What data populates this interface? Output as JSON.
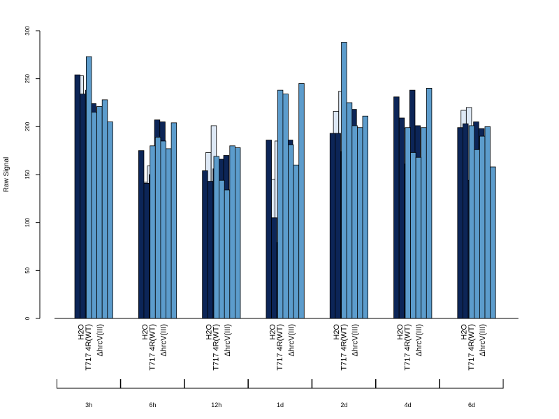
{
  "chart_data": {
    "type": "bar",
    "ylabel": "Raw Signal",
    "ylim": [
      0,
      300
    ],
    "yticks": [
      0,
      50,
      100,
      150,
      200,
      250,
      300
    ],
    "category_labels": [
      "H2O",
      "T717 4R(WT)",
      "ΔhrcV(III)"
    ],
    "colors": {
      "H2O": "#dde8f5",
      "T717 4R(WT)": "#0c2557",
      "ΔhrcV(III)": "#5c9ccc"
    },
    "groups": [
      {
        "label": "3h",
        "series": [
          {
            "category": "H2O",
            "values": [
              0,
              253,
              222
            ]
          },
          {
            "category": "T717 4R(WT)",
            "values": [
              254,
              234,
              238,
              224,
              214
            ]
          },
          {
            "category": "ΔhrcV(III)",
            "values": [
              273,
              215,
              221,
              228,
              205
            ]
          }
        ]
      },
      {
        "label": "6h",
        "series": [
          {
            "category": "H2O",
            "values": [
              0,
              142,
              159
            ]
          },
          {
            "category": "T717 4R(WT)",
            "values": [
              175,
              141,
              150,
              207,
              205
            ]
          },
          {
            "category": "ΔhrcV(III)",
            "values": [
              180,
              189,
              185,
              177,
              204
            ]
          }
        ]
      },
      {
        "label": "12h",
        "series": [
          {
            "category": "H2O",
            "values": [
              0,
              173,
              201
            ]
          },
          {
            "category": "T717 4R(WT)",
            "values": [
              154,
              143,
              156,
              166,
              170
            ]
          },
          {
            "category": "ΔhrcV(III)",
            "values": [
              169,
              144,
              134,
              180,
              178
            ]
          }
        ]
      },
      {
        "label": "1d",
        "series": [
          {
            "category": "H2O",
            "values": [
              0,
              145,
              185
            ]
          },
          {
            "category": "T717 4R(WT)",
            "values": [
              186,
              105,
              79,
              162,
              186
            ]
          },
          {
            "category": "ΔhrcV(III)",
            "values": [
              238,
              234,
              181,
              160,
              245
            ]
          }
        ]
      },
      {
        "label": "2d",
        "series": [
          {
            "category": "H2O",
            "values": [
              0,
              216,
              237
            ]
          },
          {
            "category": "T717 4R(WT)",
            "values": [
              193,
              193,
              174,
              224,
              218
            ]
          },
          {
            "category": "ΔhrcV(III)",
            "values": [
              288,
              225,
              201,
              199,
              211
            ]
          }
        ]
      },
      {
        "label": "4d",
        "series": [
          {
            "category": "H2O",
            "values": [
              0,
              193,
              198
            ]
          },
          {
            "category": "T717 4R(WT)",
            "values": [
              231,
              209,
              161,
              238,
              201
            ]
          },
          {
            "category": "ΔhrcV(III)",
            "values": [
              199,
              173,
              168,
              199,
              240
            ]
          }
        ]
      },
      {
        "label": "6d",
        "series": [
          {
            "category": "H2O",
            "values": [
              0,
              217,
              220
            ]
          },
          {
            "category": "T717 4R(WT)",
            "values": [
              199,
              203,
              144,
              205,
              198
            ]
          },
          {
            "category": "ΔhrcV(III)",
            "values": [
              201,
              176,
              190,
              200,
              158
            ]
          }
        ]
      }
    ]
  }
}
